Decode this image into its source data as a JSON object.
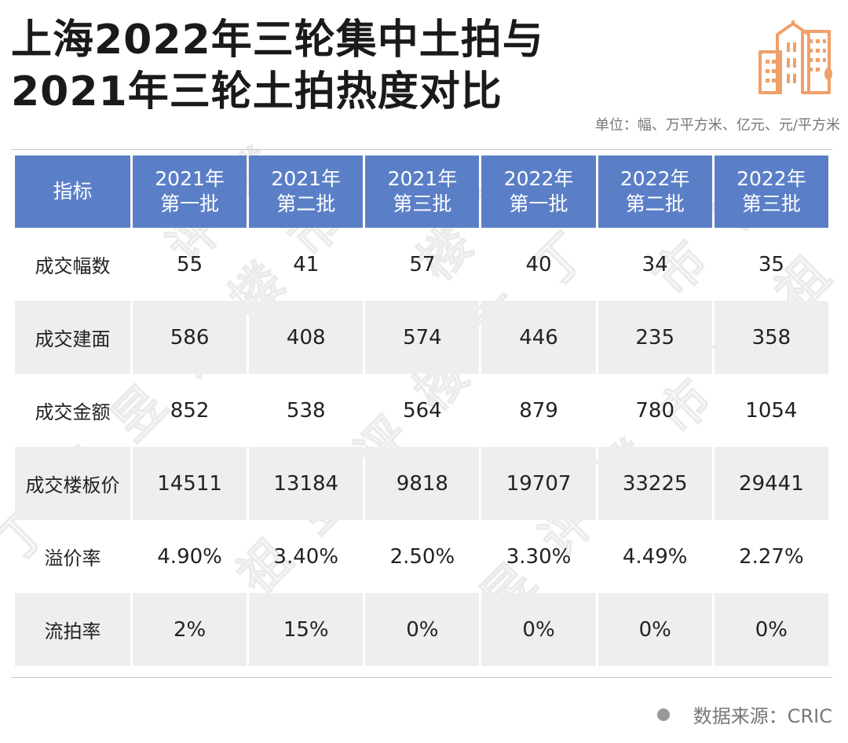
{
  "title": {
    "line1": "上海2022年三轮集中土拍与",
    "line2": "2021年三轮土拍热度对比"
  },
  "unit": "单位：幅、万平方米、亿元、元/平方米",
  "source": "数据来源：CRIC",
  "watermark": [
    "丁",
    "祖",
    "昱",
    "评",
    "楼",
    "市"
  ],
  "colors": {
    "header_bg": "#5b7fc7",
    "row_shade": "#eeeeee",
    "logo": "#f0a06a"
  },
  "chart_data": {
    "type": "table",
    "header_label": "指标",
    "columns": [
      [
        "2021年",
        "第一批"
      ],
      [
        "2021年",
        "第二批"
      ],
      [
        "2021年",
        "第三批"
      ],
      [
        "2022年",
        "第一批"
      ],
      [
        "2022年",
        "第二批"
      ],
      [
        "2022年",
        "第三批"
      ]
    ],
    "rows": [
      {
        "label": "成交幅数",
        "values": [
          "55",
          "41",
          "57",
          "40",
          "34",
          "35"
        ]
      },
      {
        "label": "成交建面",
        "values": [
          "586",
          "408",
          "574",
          "446",
          "235",
          "358"
        ]
      },
      {
        "label": "成交金额",
        "values": [
          "852",
          "538",
          "564",
          "879",
          "780",
          "1054"
        ]
      },
      {
        "label": "成交楼板价",
        "values": [
          "14511",
          "13184",
          "9818",
          "19707",
          "33225",
          "29441"
        ]
      },
      {
        "label": "溢价率",
        "values": [
          "4.90%",
          "3.40%",
          "2.50%",
          "3.30%",
          "4.49%",
          "2.27%"
        ]
      },
      {
        "label": "流拍率",
        "values": [
          "2%",
          "15%",
          "0%",
          "0%",
          "0%",
          "0%"
        ]
      }
    ]
  }
}
